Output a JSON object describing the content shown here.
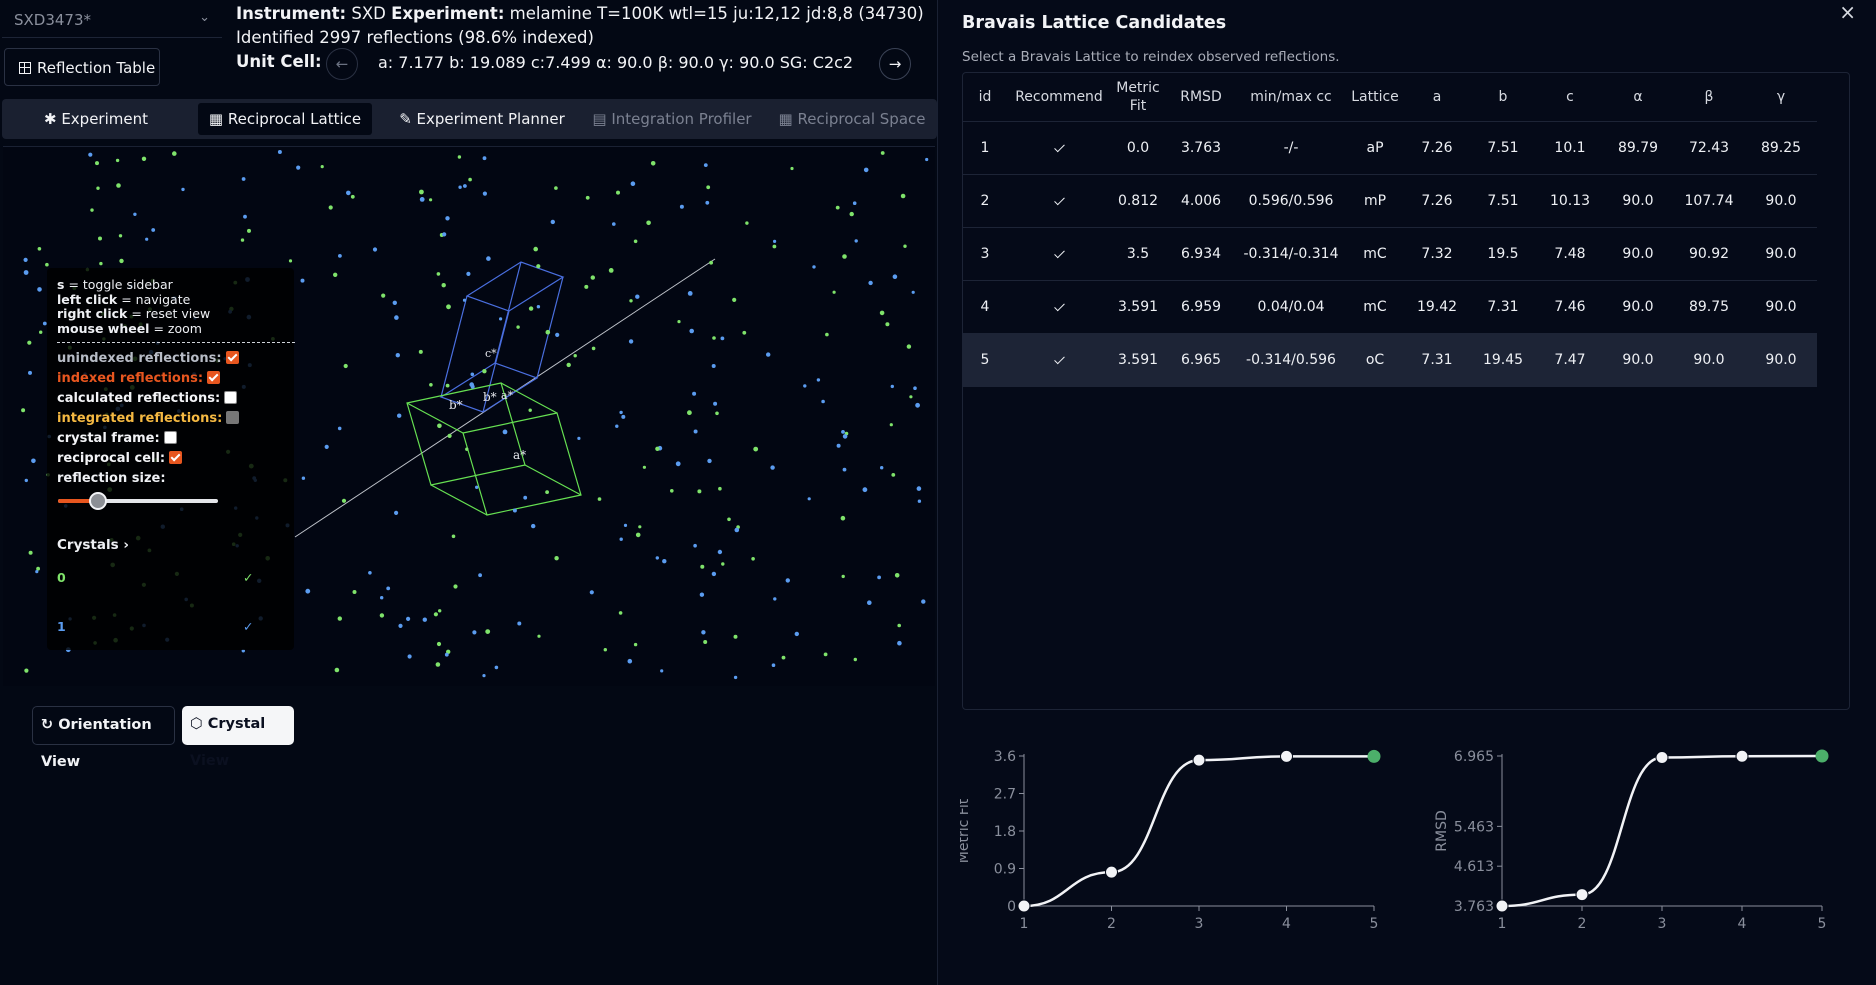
{
  "experiment_select": {
    "value": "SXD3473*"
  },
  "reflection_table_button": "Reflection Table",
  "header": {
    "instrument_label": "Instrument:",
    "instrument_value": "SXD",
    "experiment_label": "Experiment:",
    "experiment_value": "melamine T=100K wtl=15 ju:12,12 jd:8,8 (34730)",
    "identified": "Identified 2997 reflections (98.6% indexed)",
    "unit_cell_label": "Unit Cell:",
    "unit_cell_value": "a: 7.177 b: 19.089 c:7.499 α: 90.0 β: 90.0 γ: 90.0 SG: C2c2"
  },
  "tabs": [
    {
      "label": "Experiment",
      "icon": "asterisk-icon",
      "active": false,
      "disabled": false
    },
    {
      "label": "Reciprocal Lattice",
      "icon": "grid-icon",
      "active": true,
      "disabled": false
    },
    {
      "label": "Experiment Planner",
      "icon": "pencil-icon",
      "active": false,
      "disabled": false
    },
    {
      "label": "Integration Profiler",
      "icon": "bar-chart-icon",
      "active": false,
      "disabled": true
    },
    {
      "label": "Reciprocal Space",
      "icon": "grid-icon",
      "active": false,
      "disabled": true
    }
  ],
  "sidebar": {
    "shortcuts": [
      {
        "key": "s",
        "desc": "= toggle sidebar"
      },
      {
        "key": "left click",
        "desc": "= navigate"
      },
      {
        "key": "right click",
        "desc": "= reset view"
      },
      {
        "key": "mouse wheel",
        "desc": "= zoom"
      }
    ],
    "options": [
      {
        "label": "unindexed reflections:",
        "state": "on",
        "color": "#b7bcc6"
      },
      {
        "label": "indexed reflections:",
        "state": "on",
        "color": "#e7561f"
      },
      {
        "label": "calculated reflections:",
        "state": "off",
        "color": "#f2f3f6"
      },
      {
        "label": "integrated reflections:",
        "state": "disabled",
        "color": "#f5b942"
      },
      {
        "label": "crystal frame:",
        "state": "off",
        "color": "#f2f3f6"
      },
      {
        "label": "reciprocal cell:",
        "state": "on",
        "color": "#f2f3f6"
      }
    ],
    "reflection_size_label": "reflection size:",
    "reflection_size_fraction": 0.25,
    "crystals_label": "Crystals",
    "crystals": [
      {
        "id": "0",
        "color": "#7fe36b",
        "checked": true
      },
      {
        "id": "1",
        "color": "#5b9cf0",
        "checked": true
      }
    ]
  },
  "view_buttons": {
    "orientation": "Orientation View",
    "crystal": "Crystal View"
  },
  "lattice_labels": {
    "a_star": "a*",
    "b_star": "b*",
    "c_star": "c*"
  },
  "bravais": {
    "title": "Bravais Lattice Candidates",
    "description": "Select a Bravais Lattice to reindex observed reflections.",
    "columns": [
      "id",
      "Recommend",
      "Metric Fit",
      "RMSD",
      "min/max cc",
      "Lattice",
      "a",
      "b",
      "c",
      "α",
      "β",
      "γ"
    ],
    "rows": [
      {
        "id": "1",
        "recommend": true,
        "metric_fit": "0.0",
        "rmsd": "3.763",
        "cc": "-/-",
        "lattice": "aP",
        "a": "7.26",
        "b": "7.51",
        "c": "10.1",
        "alpha": "89.79",
        "beta": "72.43",
        "gamma": "89.25"
      },
      {
        "id": "2",
        "recommend": true,
        "metric_fit": "0.812",
        "rmsd": "4.006",
        "cc": "0.596/0.596",
        "lattice": "mP",
        "a": "7.26",
        "b": "7.51",
        "c": "10.13",
        "alpha": "90.0",
        "beta": "107.74",
        "gamma": "90.0"
      },
      {
        "id": "3",
        "recommend": true,
        "metric_fit": "3.5",
        "rmsd": "6.934",
        "cc": "-0.314/-0.314",
        "lattice": "mC",
        "a": "7.32",
        "b": "19.5",
        "c": "7.48",
        "alpha": "90.0",
        "beta": "90.92",
        "gamma": "90.0"
      },
      {
        "id": "4",
        "recommend": true,
        "metric_fit": "3.591",
        "rmsd": "6.959",
        "cc": "0.04/0.04",
        "lattice": "mC",
        "a": "19.42",
        "b": "7.31",
        "c": "7.46",
        "alpha": "90.0",
        "beta": "89.75",
        "gamma": "90.0"
      },
      {
        "id": "5",
        "recommend": true,
        "metric_fit": "3.591",
        "rmsd": "6.965",
        "cc": "-0.314/0.596",
        "lattice": "oC",
        "a": "7.31",
        "b": "19.45",
        "c": "7.47",
        "alpha": "90.0",
        "beta": "90.0",
        "gamma": "90.0",
        "selected": true
      }
    ]
  },
  "chart_data": [
    {
      "type": "line",
      "ylabel": "Metric Fit",
      "x": [
        1,
        2,
        3,
        4,
        5
      ],
      "y": [
        0.0,
        0.812,
        3.5,
        3.591,
        3.591
      ],
      "yticks": [
        "0",
        "0.9",
        "1.8",
        "2.7",
        "3.6"
      ],
      "ylim": [
        0,
        3.6
      ],
      "xticks": [
        "1",
        "2",
        "3",
        "4",
        "5"
      ],
      "highlight_index": 4,
      "highlight_color": "#4caf6a"
    },
    {
      "type": "line",
      "ylabel": "RMSD",
      "x": [
        1,
        2,
        3,
        4,
        5
      ],
      "y": [
        3.763,
        4.006,
        6.934,
        6.959,
        6.965
      ],
      "yticks": [
        "3.763",
        "4.613",
        "5.463",
        "6.965"
      ],
      "ylim": [
        3.763,
        6.965
      ],
      "xticks": [
        "1",
        "2",
        "3",
        "4",
        "5"
      ],
      "highlight_index": 4,
      "highlight_color": "#4caf6a"
    }
  ]
}
